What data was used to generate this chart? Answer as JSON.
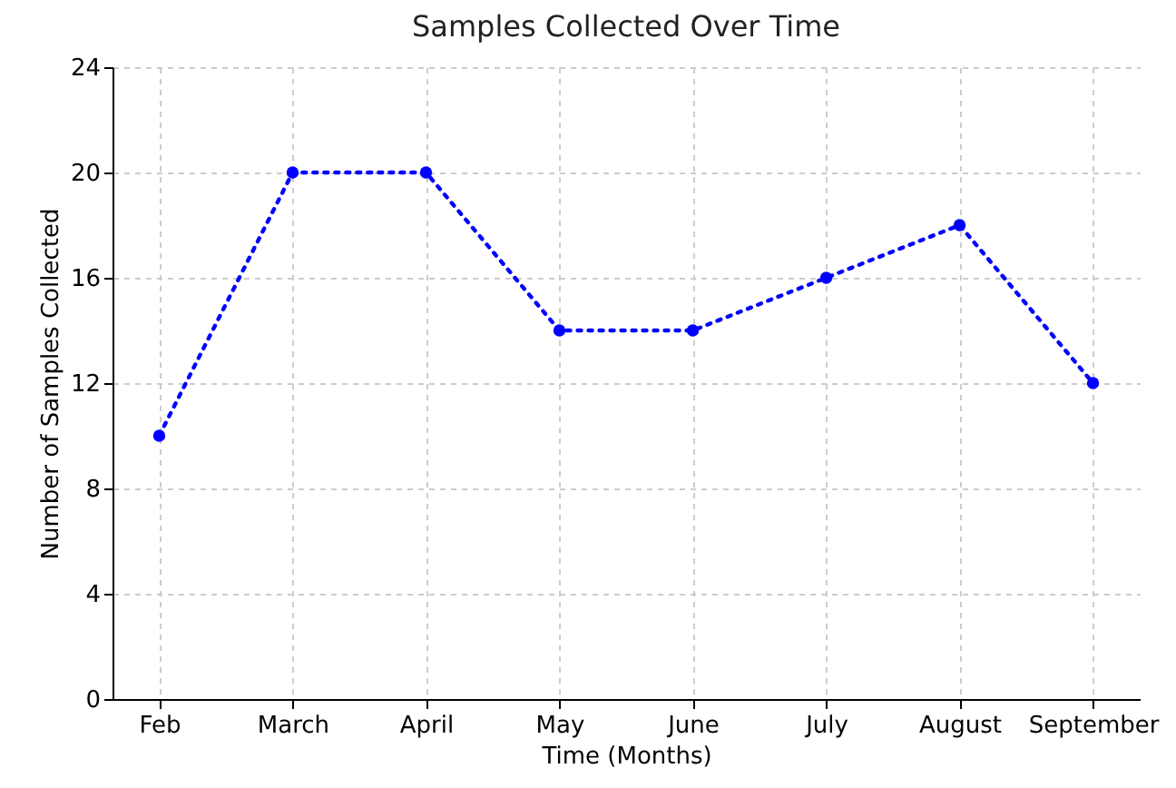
{
  "chart_data": {
    "type": "line",
    "title": "Samples Collected Over Time",
    "xlabel": "Time (Months)",
    "ylabel": "Number of Samples Collected",
    "categories": [
      "Feb",
      "March",
      "April",
      "May",
      "June",
      "July",
      "August",
      "September"
    ],
    "series": [
      {
        "color": "#0000ff",
        "values": [
          10,
          20,
          20,
          14,
          14,
          16,
          18,
          12
        ]
      }
    ],
    "ylim": [
      0,
      24
    ],
    "yticks": [
      0,
      4,
      8,
      12,
      16,
      20,
      24
    ],
    "grid": true,
    "marker": "circle",
    "line_style": "dotted"
  }
}
